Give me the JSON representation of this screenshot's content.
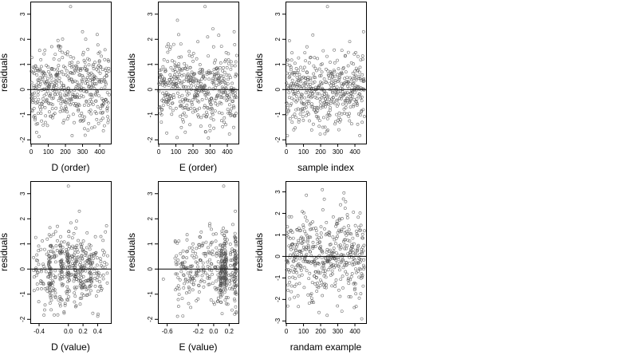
{
  "colors": {
    "point": "#555555",
    "axis": "#000000",
    "zero_line": "#000000",
    "background": "#ffffff"
  },
  "chart_data": [
    {
      "type": "scatter",
      "xlabel": "D (order)",
      "ylabel": "residuals",
      "xlim": [
        -5,
        465
      ],
      "ylim": [
        -2.15,
        3.5
      ],
      "x_ticks": [
        0,
        100,
        200,
        300,
        400
      ],
      "x_tick_labels": [
        "0",
        "100",
        "200",
        "300",
        "400"
      ],
      "y_ticks": [
        -2,
        -1,
        0,
        1,
        2,
        3
      ],
      "y_tick_labels": [
        "-2",
        "-1",
        "0",
        "1",
        "2",
        "3"
      ],
      "reference_line_y": 0,
      "grid": false,
      "n_points": 460,
      "outliers": [
        {
          "x": 230,
          "y": 3.3
        },
        {
          "x": 160,
          "y": 1.7
        },
        {
          "x": 300,
          "y": 2.3
        }
      ],
      "y_spread_sd": 0.75,
      "x_distribution": "uniform"
    },
    {
      "type": "scatter",
      "xlabel": "E (order)",
      "ylabel": "residuals",
      "xlim": [
        -5,
        465
      ],
      "ylim": [
        -2.15,
        3.5
      ],
      "x_ticks": [
        0,
        100,
        200,
        300,
        400
      ],
      "x_tick_labels": [
        "0",
        "100",
        "200",
        "300",
        "400"
      ],
      "y_ticks": [
        -2,
        -1,
        0,
        1,
        2,
        3
      ],
      "y_tick_labels": [
        "-2",
        "-1",
        "0",
        "1",
        "2",
        "3"
      ],
      "reference_line_y": 0,
      "grid": false,
      "n_points": 460,
      "outliers": [
        {
          "x": 270,
          "y": 3.3
        },
        {
          "x": 440,
          "y": 2.3
        },
        {
          "x": 320,
          "y": 1.7
        }
      ],
      "y_spread_sd": 0.75,
      "x_distribution": "uniform"
    },
    {
      "type": "scatter",
      "xlabel": "sample index",
      "ylabel": "residuals",
      "xlim": [
        -5,
        465
      ],
      "ylim": [
        -2.15,
        3.5
      ],
      "x_ticks": [
        0,
        100,
        200,
        300,
        400
      ],
      "x_tick_labels": [
        "0",
        "100",
        "200",
        "300",
        "400"
      ],
      "y_ticks": [
        -2,
        -1,
        0,
        1,
        2,
        3
      ],
      "y_tick_labels": [
        "-2",
        "-1",
        "0",
        "1",
        "2",
        "3"
      ],
      "reference_line_y": 0,
      "grid": false,
      "n_points": 460,
      "outliers": [
        {
          "x": 240,
          "y": 3.3
        },
        {
          "x": 450,
          "y": 2.3
        },
        {
          "x": 120,
          "y": 1.7
        }
      ],
      "y_spread_sd": 0.75,
      "x_distribution": "uniform"
    },
    {
      "type": "scatter",
      "xlabel": "D (value)",
      "ylabel": "residuals",
      "xlim": [
        -0.52,
        0.58
      ],
      "ylim": [
        -2.15,
        3.5
      ],
      "x_ticks": [
        -0.4,
        0.0,
        0.2,
        0.4
      ],
      "x_tick_labels": [
        "-0.4",
        "0.0",
        "0.2",
        "0.4"
      ],
      "y_ticks": [
        -2,
        -1,
        0,
        1,
        2,
        3
      ],
      "y_tick_labels": [
        "-2",
        "-1",
        "0",
        "1",
        "2",
        "3"
      ],
      "reference_line_y": 0,
      "grid": false,
      "n_points": 460,
      "outliers": [
        {
          "x": 0.0,
          "y": 3.3
        },
        {
          "x": 0.15,
          "y": 2.3
        },
        {
          "x": -0.15,
          "y": 1.7
        }
      ],
      "y_spread_sd": 0.75,
      "x_distribution": "clustered",
      "x_clusters": [
        -0.25,
        -0.1,
        0.0,
        0.1,
        0.18,
        0.3
      ]
    },
    {
      "type": "scatter",
      "xlabel": "E (value)",
      "ylabel": "residuals",
      "xlim": [
        -0.72,
        0.32
      ],
      "ylim": [
        -2.15,
        3.5
      ],
      "x_ticks": [
        -0.6,
        -0.2,
        0.0,
        0.2
      ],
      "x_tick_labels": [
        "-0.6",
        "-0.2",
        "0.0",
        "0.2"
      ],
      "y_ticks": [
        -2,
        -1,
        0,
        1,
        2,
        3
      ],
      "y_tick_labels": [
        "-2",
        "-1",
        "0",
        "1",
        "2",
        "3"
      ],
      "reference_line_y": 0,
      "grid": false,
      "n_points": 460,
      "outliers": [
        {
          "x": 0.13,
          "y": 3.3
        },
        {
          "x": 0.28,
          "y": 2.3
        },
        {
          "x": -0.65,
          "y": -0.4
        }
      ],
      "y_spread_sd": 0.75,
      "x_distribution": "skewed",
      "x_clusters": [
        0.1,
        0.15,
        0.28
      ]
    },
    {
      "type": "scatter",
      "xlabel": "randam example",
      "ylabel": "residuals",
      "xlim": [
        -5,
        465
      ],
      "ylim": [
        -3.1,
        3.5
      ],
      "x_ticks": [
        0,
        100,
        200,
        300,
        400
      ],
      "x_tick_labels": [
        "0",
        "100",
        "200",
        "300",
        "400"
      ],
      "y_ticks": [
        -3,
        -2,
        -1,
        0,
        1,
        2,
        3
      ],
      "y_tick_labels": [
        "-3",
        "-2",
        "-1",
        "0",
        "1",
        "2",
        "3"
      ],
      "reference_line_y": 0,
      "grid": false,
      "n_points": 460,
      "outliers": [
        {
          "x": 210,
          "y": 3.1
        },
        {
          "x": 440,
          "y": -2.9
        }
      ],
      "y_spread_sd": 1.0,
      "x_distribution": "uniform"
    }
  ]
}
